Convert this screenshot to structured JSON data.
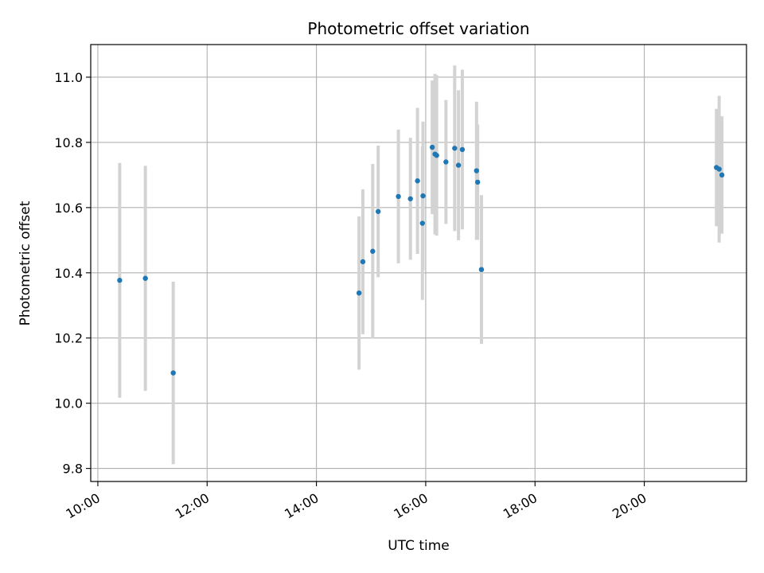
{
  "chart_data": {
    "type": "scatter",
    "title": "Photometric offset variation",
    "xlabel": "UTC time",
    "ylabel": "Photometric offset",
    "x_unit": "hours UTC",
    "xlim": [
      9.87,
      21.87
    ],
    "ylim": [
      9.76,
      11.1
    ],
    "x_ticks": [
      {
        "value": 10,
        "label": "10:00"
      },
      {
        "value": 12,
        "label": "12:00"
      },
      {
        "value": 14,
        "label": "14:00"
      },
      {
        "value": 16,
        "label": "16:00"
      },
      {
        "value": 18,
        "label": "18:00"
      },
      {
        "value": 20,
        "label": "20:00"
      }
    ],
    "y_ticks": [
      {
        "value": 9.8,
        "label": "9.8"
      },
      {
        "value": 10.0,
        "label": "10.0"
      },
      {
        "value": 10.2,
        "label": "10.2"
      },
      {
        "value": 10.4,
        "label": "10.4"
      },
      {
        "value": 10.6,
        "label": "10.6"
      },
      {
        "value": 10.8,
        "label": "10.8"
      },
      {
        "value": 11.0,
        "label": "11.0"
      }
    ],
    "grid": true,
    "point_color": "#1f77b4",
    "errorbar_color": "#d3d3d3",
    "points": [
      {
        "x": 10.4,
        "y": 10.377,
        "err": 0.36
      },
      {
        "x": 10.87,
        "y": 10.383,
        "err": 0.345
      },
      {
        "x": 11.38,
        "y": 10.093,
        "err": 0.28
      },
      {
        "x": 14.78,
        "y": 10.338,
        "err": 0.235
      },
      {
        "x": 14.85,
        "y": 10.434,
        "err": 0.222
      },
      {
        "x": 15.03,
        "y": 10.466,
        "err": 0.268
      },
      {
        "x": 15.13,
        "y": 10.588,
        "err": 0.202
      },
      {
        "x": 15.5,
        "y": 10.634,
        "err": 0.205
      },
      {
        "x": 15.72,
        "y": 10.627,
        "err": 0.187
      },
      {
        "x": 15.85,
        "y": 10.682,
        "err": 0.224
      },
      {
        "x": 15.94,
        "y": 10.552,
        "err": 0.235
      },
      {
        "x": 15.95,
        "y": 10.636,
        "err": 0.228
      },
      {
        "x": 16.12,
        "y": 10.785,
        "err": 0.205
      },
      {
        "x": 16.17,
        "y": 10.764,
        "err": 0.246
      },
      {
        "x": 16.2,
        "y": 10.76,
        "err": 0.246
      },
      {
        "x": 16.37,
        "y": 10.74,
        "err": 0.19
      },
      {
        "x": 16.53,
        "y": 10.782,
        "err": 0.254
      },
      {
        "x": 16.6,
        "y": 10.73,
        "err": 0.23
      },
      {
        "x": 16.67,
        "y": 10.778,
        "err": 0.245
      },
      {
        "x": 16.93,
        "y": 10.713,
        "err": 0.212
      },
      {
        "x": 16.95,
        "y": 10.678,
        "err": 0.177
      },
      {
        "x": 17.02,
        "y": 10.41,
        "err": 0.228
      },
      {
        "x": 21.32,
        "y": 10.723,
        "err": 0.18
      },
      {
        "x": 21.37,
        "y": 10.718,
        "err": 0.225
      },
      {
        "x": 21.42,
        "y": 10.7,
        "err": 0.18
      }
    ]
  }
}
